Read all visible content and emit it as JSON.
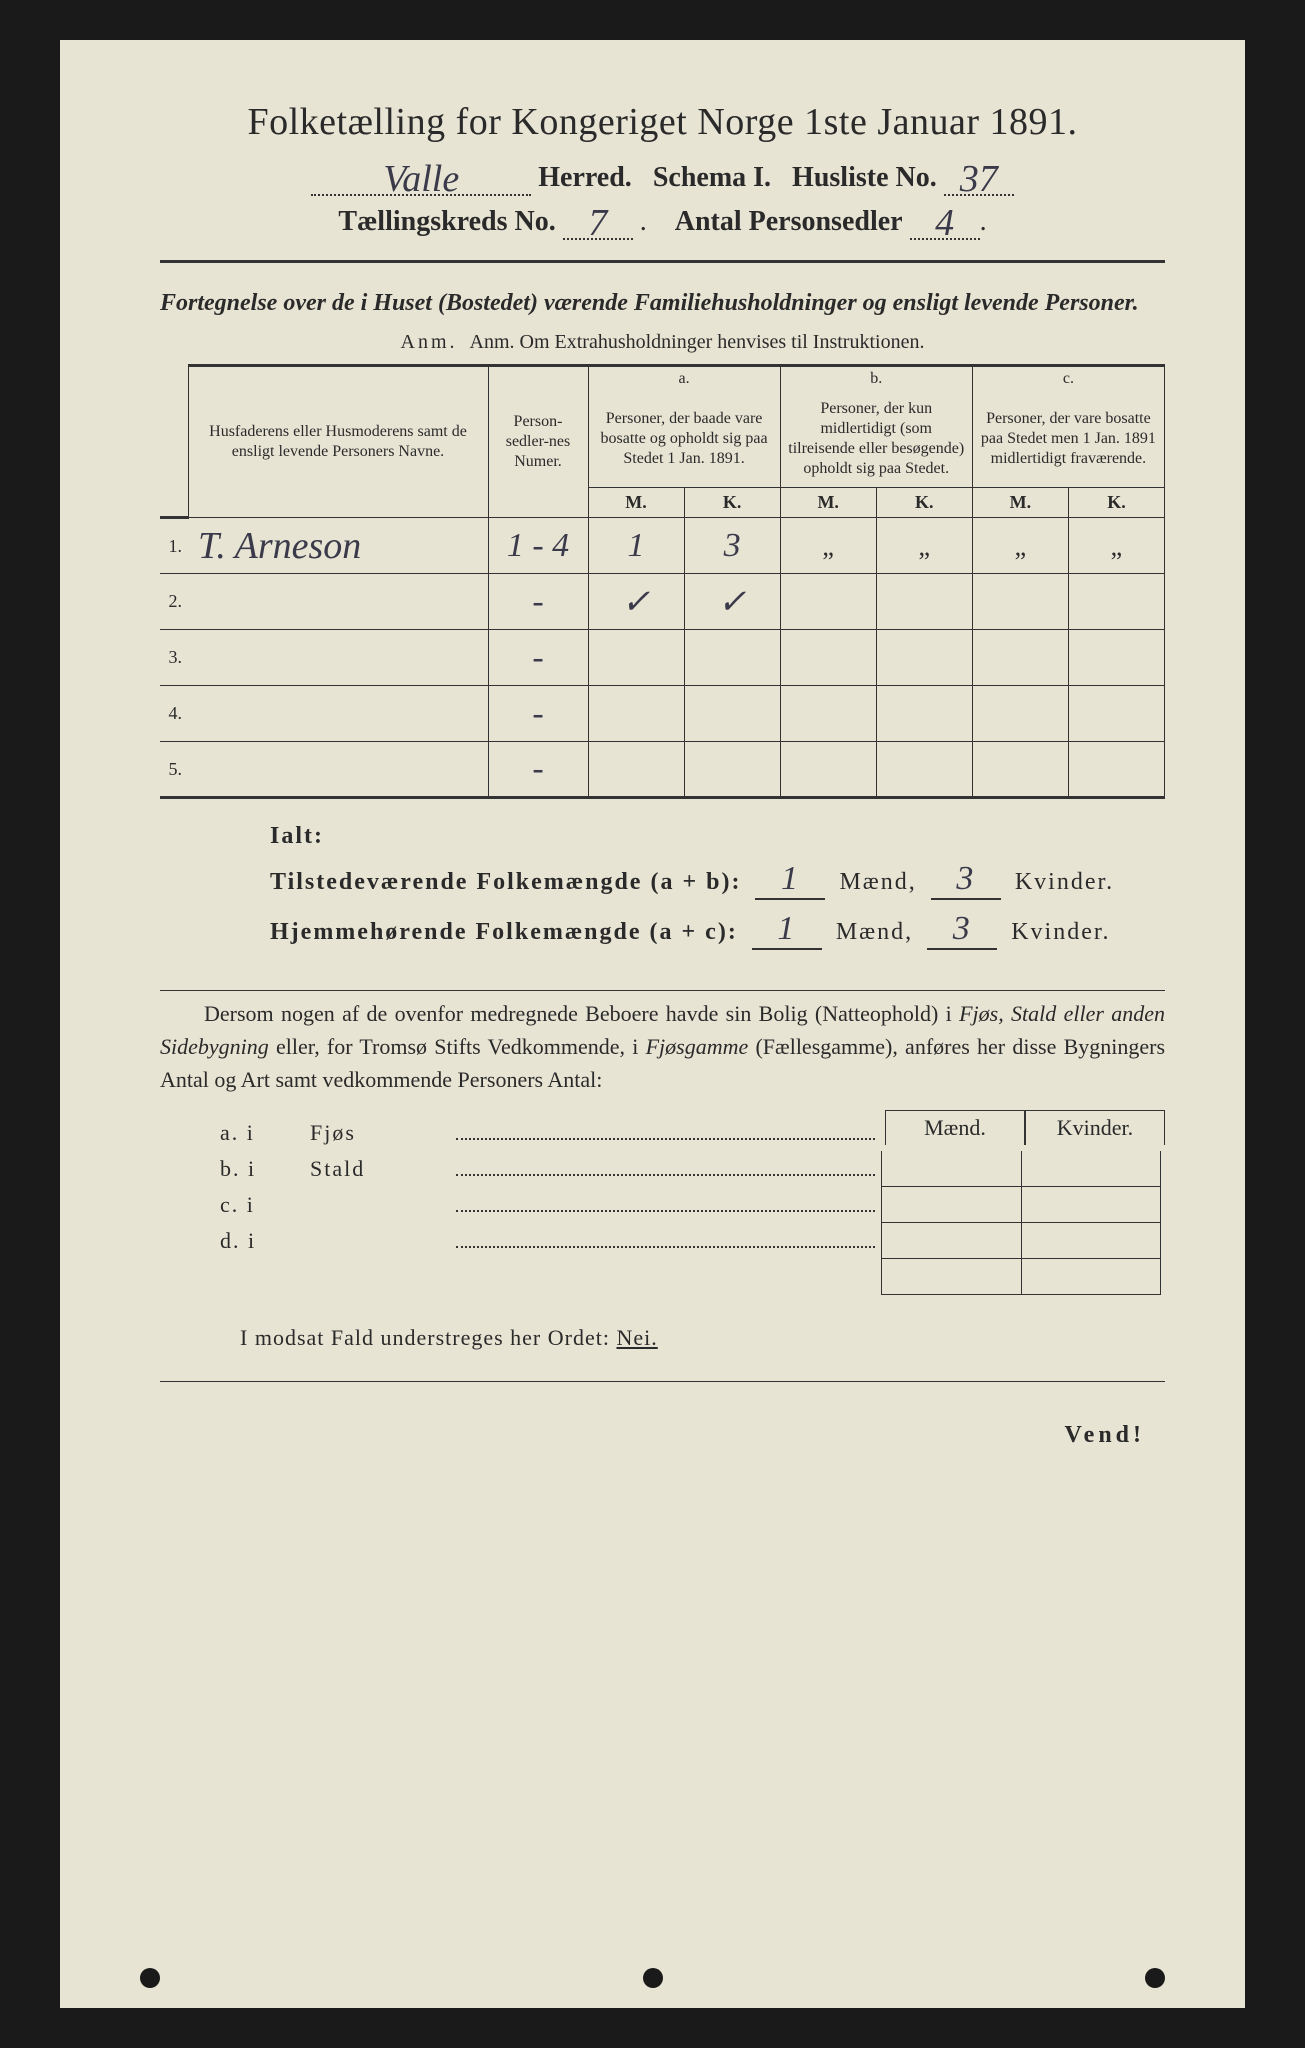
{
  "colors": {
    "paper": "#e8e4d4",
    "ink": "#2a2a2a",
    "handwriting": "#3a3a4a",
    "background": "#1a1a1a",
    "rule": "#333333"
  },
  "typography": {
    "title_pt": 38,
    "header_pt": 28,
    "body_pt": 22,
    "table_head_pt": 16,
    "handwritten_family": "cursive"
  },
  "header": {
    "title": "Folketælling for Kongeriget Norge 1ste Januar 1891.",
    "herred_value": "Valle",
    "herred_label": "Herred.",
    "schema_label": "Schema I.",
    "husliste_label": "Husliste No.",
    "husliste_value": "37",
    "kreds_label": "Tællingskreds No.",
    "kreds_value": "7",
    "antal_label": "Antal Personsedler",
    "antal_value": "4"
  },
  "subtitle": {
    "line": "Fortegnelse over de i Huset (Bostedet) værende Familiehusholdninger og ensligt levende Personer.",
    "anm": "Anm.  Om Extrahusholdninger henvises til Instruktionen."
  },
  "table": {
    "col_name": "Husfaderens eller Husmoderens samt de ensligt levende Personers Navne.",
    "col_numer": "Person-sedler-nes Numer.",
    "col_a_label": "a.",
    "col_a": "Personer, der baade vare bosatte og opholdt sig paa Stedet 1 Jan. 1891.",
    "col_b_label": "b.",
    "col_b": "Personer, der kun midlertidigt (som tilreisende eller besøgende) opholdt sig paa Stedet.",
    "col_c_label": "c.",
    "col_c": "Personer, der vare bosatte paa Stedet men 1 Jan. 1891 midlertidigt fraværende.",
    "mk_m": "M.",
    "mk_k": "K.",
    "rows": [
      {
        "n": "1.",
        "name": "T. Arneson",
        "numer": "1 - 4",
        "a_m": "1",
        "a_k": "3",
        "b_m": "„",
        "b_k": "„",
        "c_m": "„",
        "c_k": "„"
      },
      {
        "n": "2.",
        "name": "",
        "numer": "-",
        "a_m": "✓",
        "a_k": "✓",
        "b_m": "",
        "b_k": "",
        "c_m": "",
        "c_k": ""
      },
      {
        "n": "3.",
        "name": "",
        "numer": "-",
        "a_m": "",
        "a_k": "",
        "b_m": "",
        "b_k": "",
        "c_m": "",
        "c_k": ""
      },
      {
        "n": "4.",
        "name": "",
        "numer": "-",
        "a_m": "",
        "a_k": "",
        "b_m": "",
        "b_k": "",
        "c_m": "",
        "c_k": ""
      },
      {
        "n": "5.",
        "name": "",
        "numer": "-",
        "a_m": "",
        "a_k": "",
        "b_m": "",
        "b_k": "",
        "c_m": "",
        "c_k": ""
      }
    ]
  },
  "totals": {
    "ialt": "Ialt:",
    "line1_label": "Tilstedeværende Folkemængde (a + b):",
    "line2_label": "Hjemmehørende Folkemængde (a + c):",
    "maend": "Mænd,",
    "kvinder": "Kvinder.",
    "l1_m": "1",
    "l1_k": "3",
    "l2_m": "1",
    "l2_k": "3"
  },
  "para": {
    "text1": "Dersom nogen af de ovenfor medregnede Beboere havde sin Bolig (Natteophold) i ",
    "em1": "Fjøs, Stald eller anden Sidebygning",
    "text2": " eller, for Tromsø Stifts Vedkommende, i ",
    "em2": "Fjøsgamme",
    "text3": " (Fællesgamme), anføres her disse Bygningers Antal og Art samt vedkommende Personers Antal:"
  },
  "buildings": {
    "header_m": "Mænd.",
    "header_k": "Kvinder.",
    "rows": [
      {
        "key": "a.  i",
        "name": "Fjøs"
      },
      {
        "key": "b.  i",
        "name": "Stald"
      },
      {
        "key": "c.  i",
        "name": ""
      },
      {
        "key": "d.  i",
        "name": ""
      }
    ]
  },
  "footer": {
    "modsat": "I modsat Fald understreges her Ordet: ",
    "nei": "Nei.",
    "vend": "Vend!"
  }
}
